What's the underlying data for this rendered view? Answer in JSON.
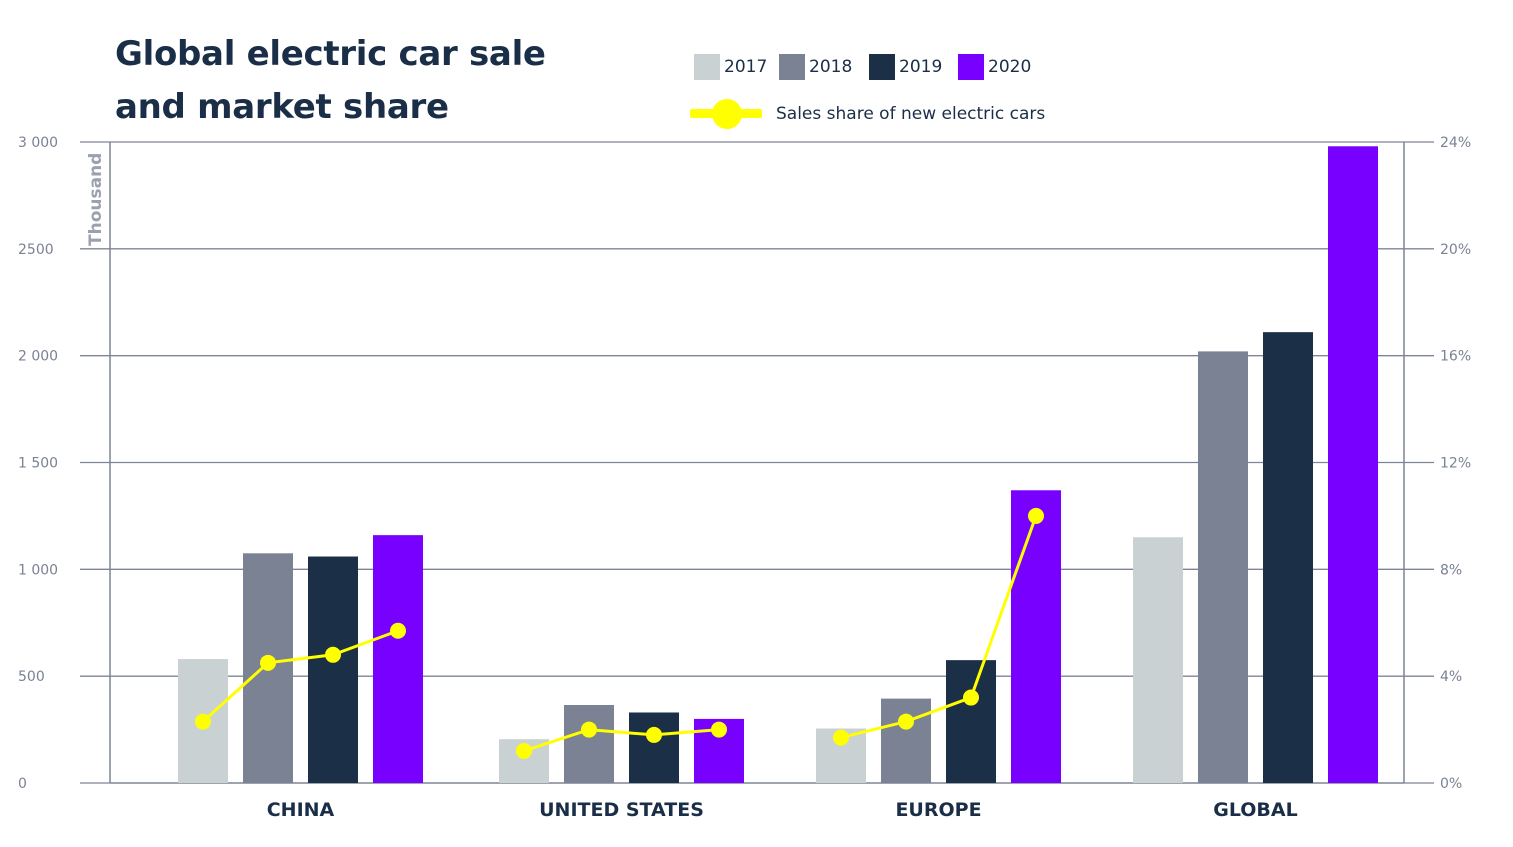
{
  "title": [
    "Global electric car sale",
    "and market share"
  ],
  "legend": {
    "series": [
      {
        "label": "2017",
        "color": "#c9d1d3"
      },
      {
        "label": "2018",
        "color": "#7a8294"
      },
      {
        "label": "2019",
        "color": "#1b2f47"
      },
      {
        "label": "2020",
        "color": "#7700ff"
      }
    ],
    "share_label": "Sales share of new electric cars",
    "share_color": "#ffff00"
  },
  "chart_data": {
    "type": "bar",
    "categories": [
      "CHINA",
      "UNITED STATES",
      "EUROPE",
      "GLOBAL"
    ],
    "series": [
      {
        "name": "2017",
        "values": [
          580,
          205,
          255,
          1150
        ]
      },
      {
        "name": "2018",
        "values": [
          1075,
          365,
          395,
          2020
        ]
      },
      {
        "name": "2019",
        "values": [
          1060,
          330,
          575,
          2110
        ]
      },
      {
        "name": "2020",
        "values": [
          1160,
          300,
          1370,
          2980
        ]
      }
    ],
    "line_series": {
      "name": "Sales share of new electric cars",
      "axis": "right",
      "values": [
        [
          2.3,
          4.5,
          4.8,
          5.7
        ],
        [
          1.2,
          2.0,
          1.8,
          2.0
        ],
        [
          1.7,
          2.3,
          3.2,
          10.0
        ],
        null
      ]
    },
    "ylabel": "Thousand",
    "ylim": [
      0,
      3000
    ],
    "y_ticks": [
      "0",
      "500",
      "1 000",
      "1 500",
      "2 000",
      "2500",
      "3 000"
    ],
    "y2lim": [
      0,
      24
    ],
    "y2_ticks": [
      "0%",
      "4%",
      "8%",
      "12%",
      "16%",
      "20%",
      "24%"
    ],
    "grid": true,
    "legend_position": "top"
  }
}
